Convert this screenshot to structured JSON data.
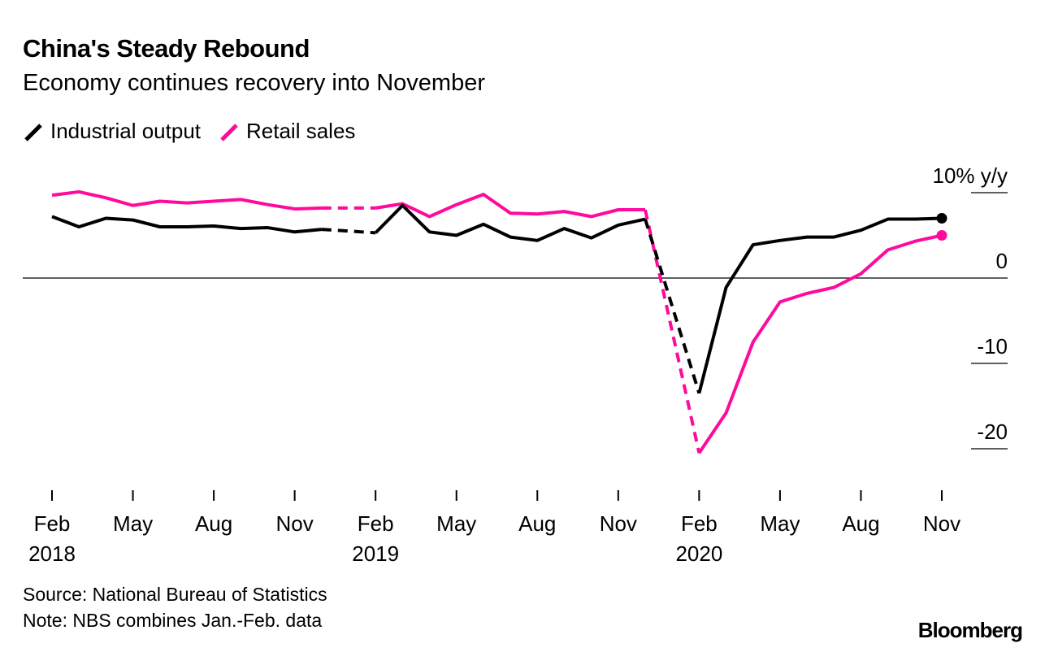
{
  "title": "China's Steady Rebound",
  "subtitle": "Economy continues recovery into November",
  "source": "Source: National Bureau of Statistics",
  "note": "Note: NBS combines Jan.-Feb. data",
  "logo": "Bloomberg",
  "chart_data": {
    "type": "line",
    "title": "China's Steady Rebound",
    "ylabel": "% y/y",
    "ylim": [
      -25,
      12
    ],
    "yticks": [
      {
        "value": 10,
        "label": "10% y/y"
      },
      {
        "value": 0,
        "label": "0"
      },
      {
        "value": -10,
        "label": "-10"
      },
      {
        "value": -20,
        "label": "-20"
      }
    ],
    "xticks": [
      {
        "m": "2018-02",
        "label": "Feb",
        "year": "2018"
      },
      {
        "m": "2018-05",
        "label": "May"
      },
      {
        "m": "2018-08",
        "label": "Aug"
      },
      {
        "m": "2018-11",
        "label": "Nov"
      },
      {
        "m": "2019-02",
        "label": "Feb",
        "year": "2019"
      },
      {
        "m": "2019-05",
        "label": "May"
      },
      {
        "m": "2019-08",
        "label": "Aug"
      },
      {
        "m": "2019-11",
        "label": "Nov"
      },
      {
        "m": "2020-02",
        "label": "Feb",
        "year": "2020"
      },
      {
        "m": "2020-05",
        "label": "May"
      },
      {
        "m": "2020-08",
        "label": "Aug"
      },
      {
        "m": "2020-11",
        "label": "Nov"
      }
    ],
    "x": [
      "2018-02",
      "2018-03",
      "2018-04",
      "2018-05",
      "2018-06",
      "2018-07",
      "2018-08",
      "2018-09",
      "2018-10",
      "2018-11",
      "2018-12",
      "2019-02",
      "2019-03",
      "2019-04",
      "2019-05",
      "2019-06",
      "2019-07",
      "2019-08",
      "2019-09",
      "2019-10",
      "2019-11",
      "2019-12",
      "2020-02",
      "2020-03",
      "2020-04",
      "2020-05",
      "2020-06",
      "2020-07",
      "2020-08",
      "2020-09",
      "2020-10",
      "2020-11"
    ],
    "series": [
      {
        "name": "Industrial output",
        "color": "#000000",
        "values": [
          7.2,
          6.0,
          7.0,
          6.8,
          6.0,
          6.0,
          6.1,
          5.8,
          5.9,
          5.4,
          5.7,
          5.3,
          8.5,
          5.4,
          5.0,
          6.3,
          4.8,
          4.4,
          5.8,
          4.7,
          6.2,
          6.9,
          -13.5,
          -1.1,
          3.9,
          4.4,
          4.8,
          4.8,
          5.6,
          6.9,
          6.9,
          7.0
        ]
      },
      {
        "name": "Retail sales",
        "color": "#ff0a9c",
        "values": [
          9.7,
          10.1,
          9.4,
          8.5,
          9.0,
          8.8,
          9.0,
          9.2,
          8.6,
          8.1,
          8.2,
          8.2,
          8.7,
          7.2,
          8.6,
          9.8,
          7.6,
          7.5,
          7.8,
          7.2,
          8.0,
          8.0,
          -20.5,
          -15.8,
          -7.5,
          -2.8,
          -1.8,
          -1.1,
          0.5,
          3.3,
          4.3,
          5.0
        ]
      }
    ],
    "legend_position": "top-left",
    "grid": false
  }
}
